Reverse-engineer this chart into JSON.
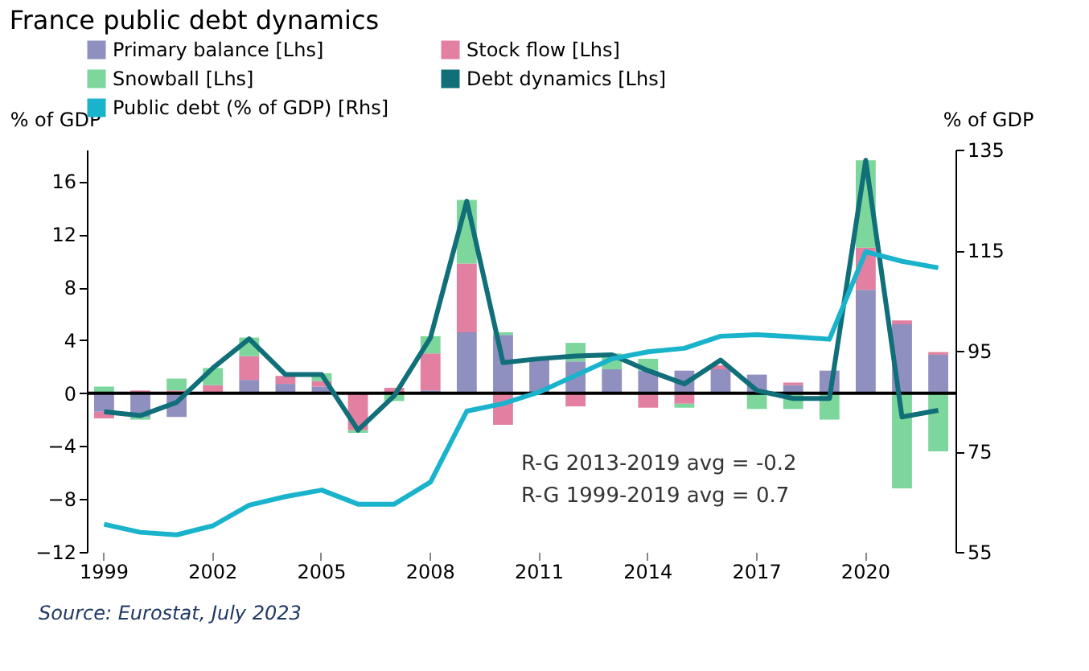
{
  "chart_data": {
    "type": "bar",
    "title": "France public debt dynamics",
    "ylabel": "% of GDP",
    "y2label": "% of GDP",
    "stacked": true,
    "categories": [
      "1999",
      null,
      null,
      "2002",
      null,
      null,
      "2005",
      null,
      null,
      "2008",
      null,
      null,
      "2011",
      null,
      null,
      "2014",
      null,
      null,
      "2017",
      null,
      null,
      "2020",
      null,
      null
    ],
    "series": [
      {
        "name": "Primary balance [Lhs]",
        "color": "#8f8fc0",
        "values": [
          -1.4,
          -1.8,
          -1.8,
          0,
          1.0,
          0.7,
          0.5,
          0,
          0,
          0.2,
          4.6,
          4.4,
          2.5,
          2.4,
          1.8,
          1.7,
          1.7,
          1.8,
          1.4,
          0.6,
          1.7,
          7.8,
          5.2,
          2.9
        ]
      },
      {
        "name": "Stock flow [Lhs]",
        "color": "#e37fa0",
        "values": [
          -0.5,
          0.2,
          0.2,
          0.6,
          1.8,
          0.6,
          0.4,
          -2.8,
          0.4,
          2.8,
          5.2,
          -2.4,
          0,
          -1.0,
          0,
          -1.1,
          -0.8,
          0.3,
          0,
          0.2,
          0,
          3.2,
          0.3,
          0.2
        ]
      },
      {
        "name": "Snowball [Lhs]",
        "color": "#7dd69c",
        "values": [
          0.5,
          -0.2,
          0.9,
          1.3,
          1.4,
          null,
          0.6,
          -0.2,
          -0.6,
          1.3,
          4.8,
          0.2,
          0,
          1.4,
          1.2,
          0.9,
          -0.3,
          null,
          -1.2,
          -1.2,
          -2.0,
          6.6,
          -7.2,
          -4.4
        ]
      },
      {
        "name": "Debt dynamics [Lhs]",
        "type": "line",
        "color": "#106f78",
        "values": [
          -1.4,
          -1.7,
          -0.7,
          1.9,
          4.1,
          1.4,
          1.4,
          -2.8,
          -0.2,
          4.2,
          14.5,
          2.3,
          2.6,
          2.8,
          2.9,
          1.7,
          0.7,
          2.5,
          0.2,
          -0.4,
          -0.4,
          17.6,
          -1.8,
          -1.3
        ]
      },
      {
        "name": "Public debt (% of GDP) [Rhs]",
        "type": "line",
        "axis": "y2",
        "color": "#1ab3cc",
        "values": [
          60.5,
          58.9,
          58.4,
          60.2,
          64.3,
          66.0,
          67.3,
          64.5,
          64.5,
          68.9,
          83.0,
          84.5,
          86.8,
          90.1,
          93.4,
          94.8,
          95.5,
          97.9,
          98.2,
          97.8,
          97.3,
          114.7,
          112.8,
          111.5
        ]
      }
    ],
    "ylim": [
      -12,
      18.4
    ],
    "yticks": [
      -12,
      -8,
      -4,
      0,
      4,
      8,
      12,
      16
    ],
    "y2lim": [
      55,
      135
    ],
    "y2ticks": [
      55,
      75,
      95,
      115,
      135
    ],
    "ref_lines": [
      {
        "axis": "y",
        "value": 0,
        "color": "#000000"
      }
    ],
    "annotations": [
      "R-G 2013-2019 avg = -0.2",
      "R-G 1999-2019 avg = 0.7",
      "Source: Eurostat, July 2023"
    ],
    "grid": false,
    "legend": "top"
  }
}
